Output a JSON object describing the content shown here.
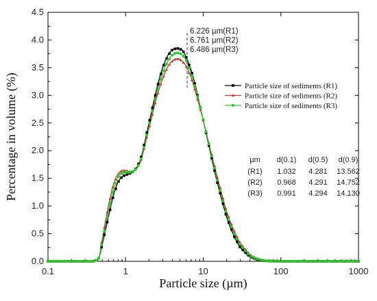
{
  "chart_data": {
    "type": "line",
    "xlabel": "Particle size (µm)",
    "ylabel": "Percentage in volume (%)",
    "x_scale": "log",
    "xlim": [
      0.1,
      1000
    ],
    "ylim": [
      0,
      4.5
    ],
    "x_ticks": [
      0.1,
      1,
      10,
      100,
      1000
    ],
    "x_tick_labels": [
      "0.1",
      "1",
      "10",
      "100",
      "1000"
    ],
    "y_ticks": [
      0,
      0.5,
      1,
      1.5,
      2,
      2.5,
      3,
      3.5,
      4,
      4.5
    ],
    "y_tick_labels": [
      "0.0",
      "0.5",
      "1.0",
      "1.5",
      "2.0",
      "2.5",
      "3.0",
      "3.5",
      "4.0",
      "4.5"
    ],
    "grid": false,
    "legend_position": "right",
    "series": [
      {
        "name": "Particle size of sediments (R1)",
        "color": "#000000",
        "marker": "square",
        "x": [
          0.1,
          0.3,
          0.4,
          0.45,
          0.5,
          0.6,
          0.7,
          0.8,
          0.9,
          1.0,
          1.2,
          1.4,
          1.6,
          2.0,
          2.5,
          3.0,
          3.5,
          4.0,
          4.5,
          5.0,
          5.5,
          6.0,
          7.0,
          8.0,
          10,
          12,
          15,
          20,
          25,
          30,
          40,
          50,
          60,
          80,
          100,
          150,
          200,
          1000
        ],
        "y": [
          0,
          0,
          0,
          0.05,
          0.3,
          0.8,
          1.2,
          1.43,
          1.53,
          1.56,
          1.6,
          1.7,
          1.9,
          2.5,
          3.1,
          3.5,
          3.72,
          3.82,
          3.85,
          3.84,
          3.8,
          3.7,
          3.45,
          3.15,
          2.55,
          2.05,
          1.45,
          0.8,
          0.45,
          0.25,
          0.08,
          0.03,
          0.01,
          0,
          0,
          0,
          0,
          0
        ]
      },
      {
        "name": "Particle size of sediments (R2)",
        "color": "#c0392b",
        "marker": "triangle",
        "x": [
          0.1,
          0.3,
          0.4,
          0.45,
          0.5,
          0.6,
          0.7,
          0.8,
          0.9,
          1.0,
          1.2,
          1.4,
          1.6,
          2.0,
          2.5,
          3.0,
          3.5,
          4.0,
          4.5,
          5.0,
          5.5,
          6.0,
          7.0,
          8.0,
          10,
          12,
          15,
          20,
          25,
          30,
          40,
          50,
          60,
          80,
          100,
          150,
          200,
          1000
        ],
        "y": [
          0,
          0,
          0,
          0.05,
          0.4,
          1.0,
          1.4,
          1.58,
          1.64,
          1.64,
          1.62,
          1.68,
          1.85,
          2.4,
          2.95,
          3.3,
          3.52,
          3.62,
          3.66,
          3.65,
          3.6,
          3.53,
          3.32,
          3.05,
          2.55,
          2.1,
          1.55,
          0.9,
          0.55,
          0.33,
          0.12,
          0.05,
          0.02,
          0.01,
          0,
          0,
          0,
          0
        ]
      },
      {
        "name": "Particle size of sediments (R3)",
        "color": "#22cc22",
        "marker": "circle",
        "x": [
          0.1,
          0.3,
          0.4,
          0.45,
          0.5,
          0.6,
          0.7,
          0.8,
          0.9,
          1.0,
          1.2,
          1.4,
          1.6,
          2.0,
          2.5,
          3.0,
          3.5,
          4.0,
          4.5,
          5.0,
          5.5,
          6.0,
          7.0,
          8.0,
          10,
          12,
          15,
          20,
          25,
          30,
          40,
          50,
          60,
          80,
          100,
          150,
          200,
          1000
        ],
        "y": [
          0,
          0,
          0,
          0.05,
          0.35,
          0.9,
          1.3,
          1.52,
          1.6,
          1.61,
          1.61,
          1.68,
          1.87,
          2.45,
          3.02,
          3.4,
          3.62,
          3.73,
          3.77,
          3.76,
          3.72,
          3.64,
          3.4,
          3.12,
          2.56,
          2.08,
          1.5,
          0.85,
          0.5,
          0.3,
          0.1,
          0.04,
          0.015,
          0,
          0,
          0,
          0,
          0
        ]
      }
    ],
    "annotations": {
      "peak_line_x": 6.2,
      "peak_labels": [
        "6.226 µm(R1)",
        "6.761 µm(R2)",
        "6.486 µm(R3)"
      ]
    },
    "stats_table": {
      "headers": [
        "µm",
        "d(0.1)",
        "d(0.5)",
        "d(0.9)"
      ],
      "rows": [
        [
          "(R1)",
          "1.032",
          "4.281",
          "13.562"
        ],
        [
          "(R2)",
          "0.968",
          "4.291",
          "14.752"
        ],
        [
          "(R3)",
          "0.991",
          "4.294",
          "14.130"
        ]
      ]
    }
  }
}
